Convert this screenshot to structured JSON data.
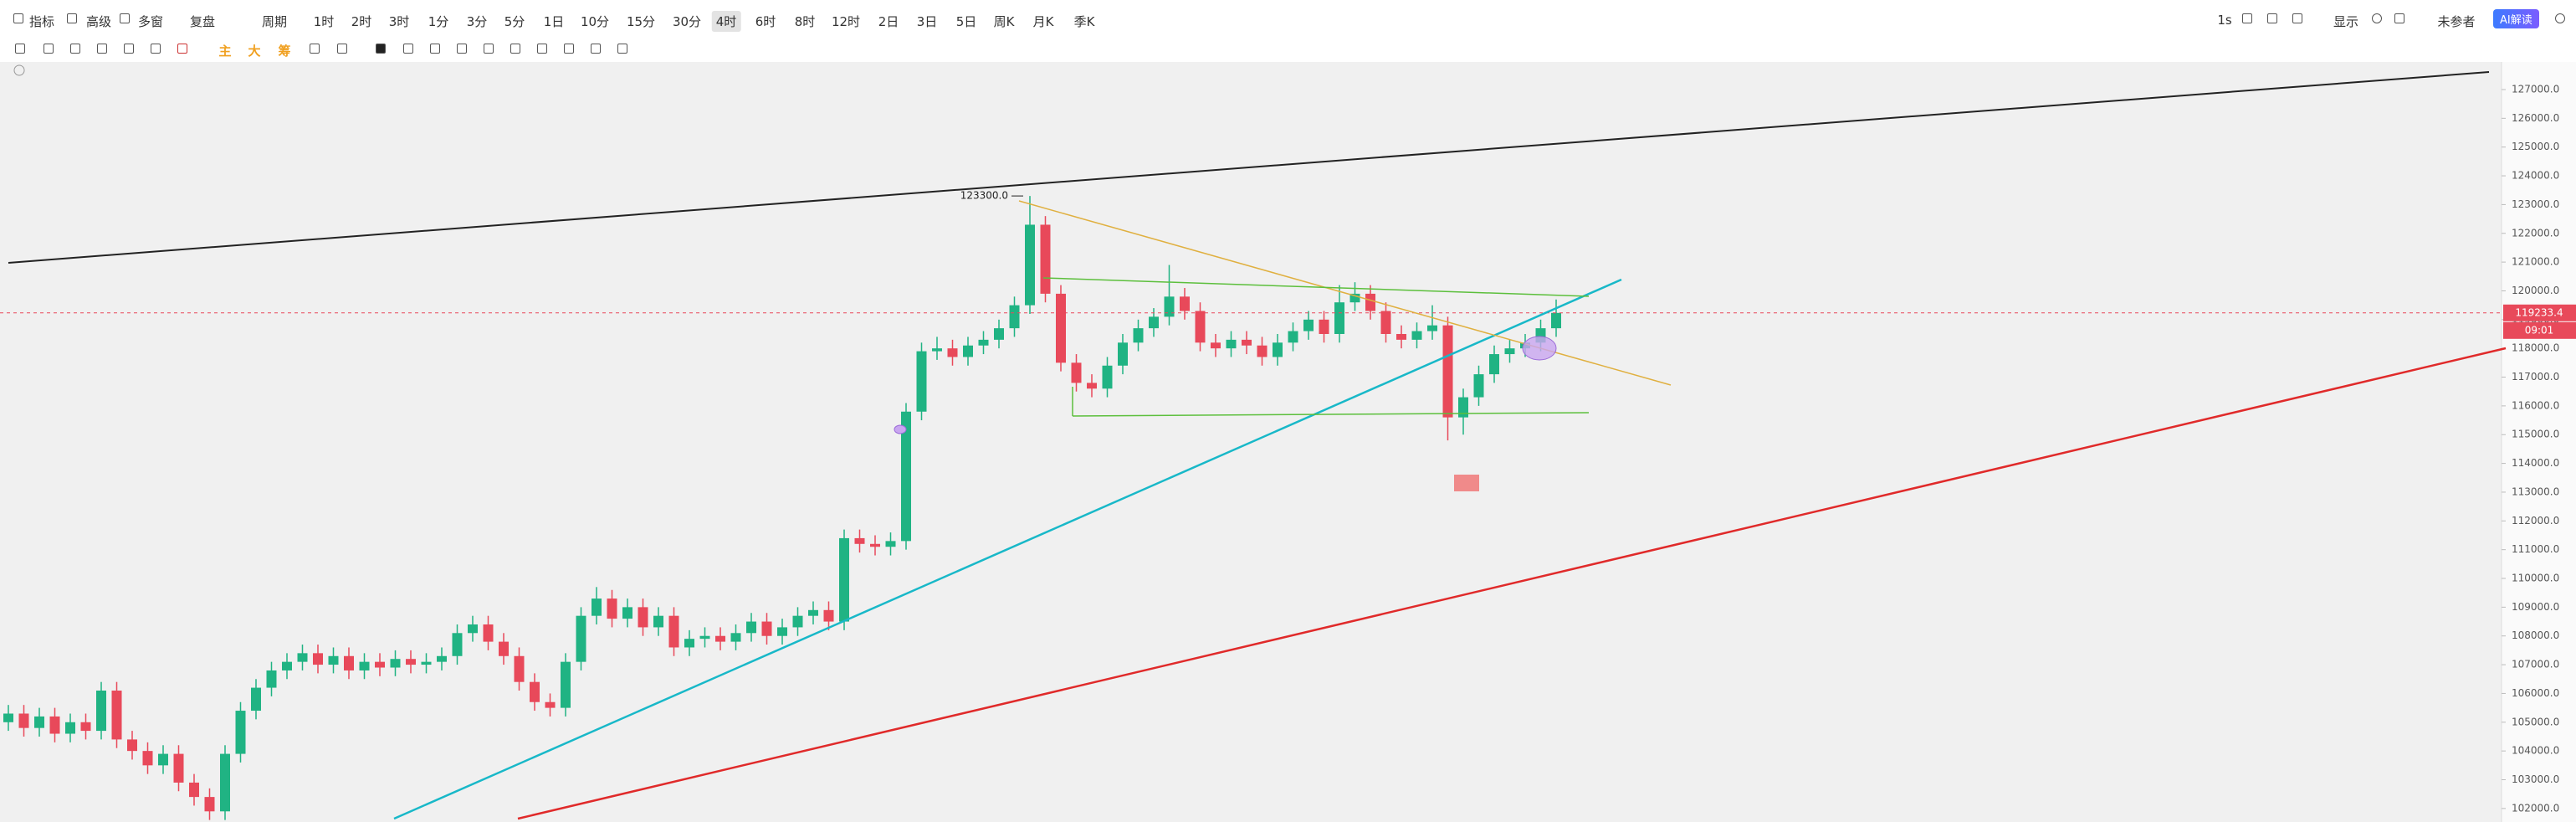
{
  "toolbar": {
    "left": [
      "指标",
      "高级",
      "多窗",
      "复盘",
      "周期"
    ],
    "periods": [
      "1时",
      "2时",
      "3时",
      "1分",
      "3分",
      "5分",
      "1日",
      "10分",
      "15分",
      "30分",
      "4时",
      "6时",
      "8时",
      "12时",
      "2日",
      "3日",
      "5日",
      "周K",
      "月K",
      "季K"
    ],
    "active_period_index": 10,
    "right": [
      "1s",
      "显示",
      "未参者"
    ],
    "ai_button": "AI解读"
  },
  "indicator_toolbar": [
    "主",
    "大",
    "筹"
  ],
  "chart_data": {
    "type": "candlestick",
    "up_color": "#20b383",
    "down_color": "#e8495a",
    "ylim": [
      101530,
      127960
    ],
    "yticks": [
      {
        "value": 102000,
        "label": "102000.0"
      },
      {
        "value": 103000,
        "label": "103000.0"
      },
      {
        "value": 104000,
        "label": "104000.0"
      },
      {
        "value": 105000,
        "label": "105000.0"
      },
      {
        "value": 106000,
        "label": "106000.0"
      },
      {
        "value": 107000,
        "label": "107000.0"
      },
      {
        "value": 108000,
        "label": "108000.0"
      },
      {
        "value": 109000,
        "label": "109000.0"
      },
      {
        "value": 110000,
        "label": "110000.0"
      },
      {
        "value": 111000,
        "label": "111000.0"
      },
      {
        "value": 112000,
        "label": "112000.0"
      },
      {
        "value": 113000,
        "label": "113000.0"
      },
      {
        "value": 114000,
        "label": "114000.0"
      },
      {
        "value": 115000,
        "label": "115000.0"
      },
      {
        "value": 116000,
        "label": "116000.0"
      },
      {
        "value": 117000,
        "label": "117000.0"
      },
      {
        "value": 118000,
        "label": "118000.0"
      },
      {
        "value": 119000,
        "label": "119000.0"
      },
      {
        "value": 120000,
        "label": "120000.0"
      },
      {
        "value": 121000,
        "label": "121000.0"
      },
      {
        "value": 122000,
        "label": "122000.0"
      },
      {
        "value": 123000,
        "label": "123000.0"
      },
      {
        "value": 124000,
        "label": "124000.0"
      },
      {
        "value": 125000,
        "label": "125000.0"
      },
      {
        "value": 126000,
        "label": "126000.0"
      },
      {
        "value": 127000,
        "label": "127000.0"
      }
    ],
    "grid": false,
    "peak_label": "123300.0",
    "peak_value": 123300,
    "countdown": "09:01",
    "ohlc": [
      [
        105000,
        105600,
        104700,
        105300
      ],
      [
        105300,
        105600,
        104500,
        104800
      ],
      [
        104800,
        105500,
        104500,
        105200
      ],
      [
        105200,
        105500,
        104300,
        104600
      ],
      [
        104600,
        105300,
        104300,
        105000
      ],
      [
        105000,
        105300,
        104400,
        104700
      ],
      [
        104700,
        106400,
        104400,
        106100
      ],
      [
        106100,
        106400,
        104100,
        104400
      ],
      [
        104400,
        104700,
        103700,
        104000
      ],
      [
        104000,
        104300,
        103200,
        103500
      ],
      [
        103500,
        104200,
        103200,
        103900
      ],
      [
        103900,
        104200,
        102600,
        102900
      ],
      [
        102900,
        103200,
        102100,
        102400
      ],
      [
        102400,
        102700,
        101600,
        101900
      ],
      [
        101900,
        104200,
        101600,
        103900
      ],
      [
        103900,
        105700,
        103600,
        105400
      ],
      [
        105400,
        106500,
        105100,
        106200
      ],
      [
        106200,
        107100,
        105900,
        106800
      ],
      [
        106800,
        107400,
        106500,
        107100
      ],
      [
        107100,
        107700,
        106800,
        107400
      ],
      [
        107400,
        107700,
        106700,
        107000
      ],
      [
        107000,
        107600,
        106700,
        107300
      ],
      [
        107300,
        107600,
        106500,
        106800
      ],
      [
        106800,
        107400,
        106500,
        107100
      ],
      [
        107100,
        107400,
        106600,
        106900
      ],
      [
        106900,
        107500,
        106600,
        107200
      ],
      [
        107200,
        107500,
        106700,
        107000
      ],
      [
        107000,
        107400,
        106700,
        107100
      ],
      [
        107100,
        107600,
        106800,
        107300
      ],
      [
        107300,
        108400,
        107000,
        108100
      ],
      [
        108100,
        108700,
        107800,
        108400
      ],
      [
        108400,
        108700,
        107500,
        107800
      ],
      [
        107800,
        108100,
        107000,
        107300
      ],
      [
        107300,
        107600,
        106100,
        106400
      ],
      [
        106400,
        106700,
        105400,
        105700
      ],
      [
        105700,
        106000,
        105200,
        105500
      ],
      [
        105500,
        107400,
        105200,
        107100
      ],
      [
        107100,
        109000,
        106800,
        108700
      ],
      [
        108700,
        109700,
        108400,
        109300
      ],
      [
        109300,
        109600,
        108300,
        108600
      ],
      [
        108600,
        109300,
        108300,
        109000
      ],
      [
        109000,
        109300,
        108000,
        108300
      ],
      [
        108300,
        109000,
        108000,
        108700
      ],
      [
        108700,
        109000,
        107300,
        107600
      ],
      [
        107600,
        108200,
        107300,
        107900
      ],
      [
        107900,
        108300,
        107600,
        108000
      ],
      [
        108000,
        108300,
        107500,
        107800
      ],
      [
        107800,
        108400,
        107500,
        108100
      ],
      [
        108100,
        108800,
        107800,
        108500
      ],
      [
        108500,
        108800,
        107700,
        108000
      ],
      [
        108000,
        108600,
        107700,
        108300
      ],
      [
        108300,
        109000,
        108000,
        108700
      ],
      [
        108700,
        109200,
        108400,
        108900
      ],
      [
        108900,
        109200,
        108200,
        108500
      ],
      [
        108500,
        111700,
        108200,
        111400
      ],
      [
        111400,
        111700,
        110900,
        111200
      ],
      [
        111200,
        111500,
        110800,
        111100
      ],
      [
        111100,
        111600,
        110800,
        111300
      ],
      [
        111300,
        116100,
        111000,
        115800
      ],
      [
        115800,
        118200,
        115500,
        117900
      ],
      [
        117900,
        118400,
        117600,
        118000
      ],
      [
        118000,
        118300,
        117400,
        117700
      ],
      [
        117700,
        118400,
        117400,
        118100
      ],
      [
        118100,
        118600,
        117800,
        118300
      ],
      [
        118300,
        119000,
        118000,
        118700
      ],
      [
        118700,
        119800,
        118400,
        119500
      ],
      [
        119500,
        123300,
        119200,
        122300
      ],
      [
        122300,
        122600,
        119600,
        119900
      ],
      [
        119900,
        120200,
        117200,
        117500
      ],
      [
        117500,
        117800,
        116500,
        116800
      ],
      [
        116800,
        117100,
        116300,
        116600
      ],
      [
        116600,
        117700,
        116300,
        117400
      ],
      [
        117400,
        118500,
        117100,
        118200
      ],
      [
        118200,
        119000,
        117900,
        118700
      ],
      [
        118700,
        119400,
        118400,
        119100
      ],
      [
        119100,
        120900,
        118800,
        119800
      ],
      [
        119800,
        120100,
        119000,
        119300
      ],
      [
        119300,
        119600,
        117900,
        118200
      ],
      [
        118200,
        118500,
        117700,
        118000
      ],
      [
        118000,
        118600,
        117700,
        118300
      ],
      [
        118300,
        118600,
        117800,
        118100
      ],
      [
        118100,
        118400,
        117400,
        117700
      ],
      [
        117700,
        118500,
        117400,
        118200
      ],
      [
        118200,
        118900,
        117900,
        118600
      ],
      [
        118600,
        119300,
        118300,
        119000
      ],
      [
        119000,
        119300,
        118200,
        118500
      ],
      [
        118500,
        120200,
        118200,
        119600
      ],
      [
        119600,
        120300,
        119300,
        119900
      ],
      [
        119900,
        120200,
        119000,
        119300
      ],
      [
        119300,
        119600,
        118200,
        118500
      ],
      [
        118500,
        118800,
        118000,
        118300
      ],
      [
        118300,
        118900,
        118000,
        118600
      ],
      [
        118600,
        119500,
        118300,
        118800
      ],
      [
        118800,
        119100,
        114800,
        115600
      ],
      [
        115600,
        116600,
        115000,
        116300
      ],
      [
        116300,
        117400,
        116000,
        117100
      ],
      [
        117100,
        118100,
        116800,
        117800
      ],
      [
        117800,
        118300,
        117500,
        118000
      ],
      [
        118000,
        118500,
        117700,
        118200
      ],
      [
        118200,
        119000,
        117900,
        118700
      ],
      [
        118700,
        119700,
        118400,
        119233.4
      ]
    ]
  }
}
